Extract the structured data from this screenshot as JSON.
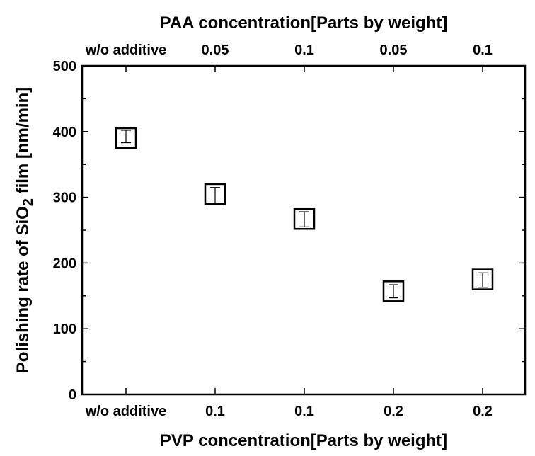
{
  "chart_data": {
    "type": "scatter",
    "top_axis": {
      "title": "PAA concentration[Parts by weight]",
      "tick_labels": [
        "w/o additive",
        "0.05",
        "0.1",
        "0.05",
        "0.1"
      ]
    },
    "bottom_axis": {
      "title": "PVP concentration[Parts by weight]",
      "tick_labels": [
        "w/o additive",
        "0.1",
        "0.1",
        "0.2",
        "0.2"
      ]
    },
    "y_axis": {
      "title_prefix": "Polishing rate of SiO",
      "title_subscript": "2",
      "title_suffix": " film [nm/min]",
      "ylim": [
        0,
        500
      ],
      "ticks": [
        0,
        100,
        200,
        300,
        400,
        500
      ]
    },
    "points": [
      {
        "value": 390,
        "err_low": 383,
        "err_high": 402
      },
      {
        "value": 305,
        "err_low": 290,
        "err_high": 315
      },
      {
        "value": 267,
        "err_low": 255,
        "err_high": 278
      },
      {
        "value": 157,
        "err_low": 147,
        "err_high": 167
      },
      {
        "value": 175,
        "err_low": 163,
        "err_high": 185
      }
    ],
    "marker": "open-square",
    "grid": false
  }
}
